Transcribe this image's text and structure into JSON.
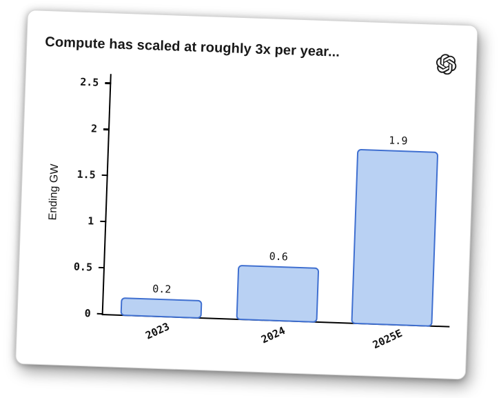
{
  "card": {
    "title": "Compute has scaled at roughly 3x per year...",
    "logo": "openai-logo"
  },
  "chart_data": {
    "type": "bar",
    "title": "Compute has scaled at roughly 3x per year...",
    "categories": [
      "2023",
      "2024",
      "2025E"
    ],
    "values": [
      0.2,
      0.6,
      1.9
    ],
    "value_labels": [
      "0.2",
      "0.6",
      "1.9"
    ],
    "xlabel": "",
    "ylabel": "Ending GW",
    "ytick_values": [
      0,
      0.5,
      1,
      1.5,
      2,
      2.5
    ],
    "ytick_labels": [
      "0",
      "0.5",
      "1",
      "1.5",
      "2",
      "2.5"
    ],
    "ylim": [
      0,
      2.6
    ],
    "grid": false,
    "legend": "none",
    "bar_fill": "#b9d1f3",
    "bar_border": "#3f6fd0",
    "axis_color": "#000000",
    "text_color": "#111111"
  }
}
